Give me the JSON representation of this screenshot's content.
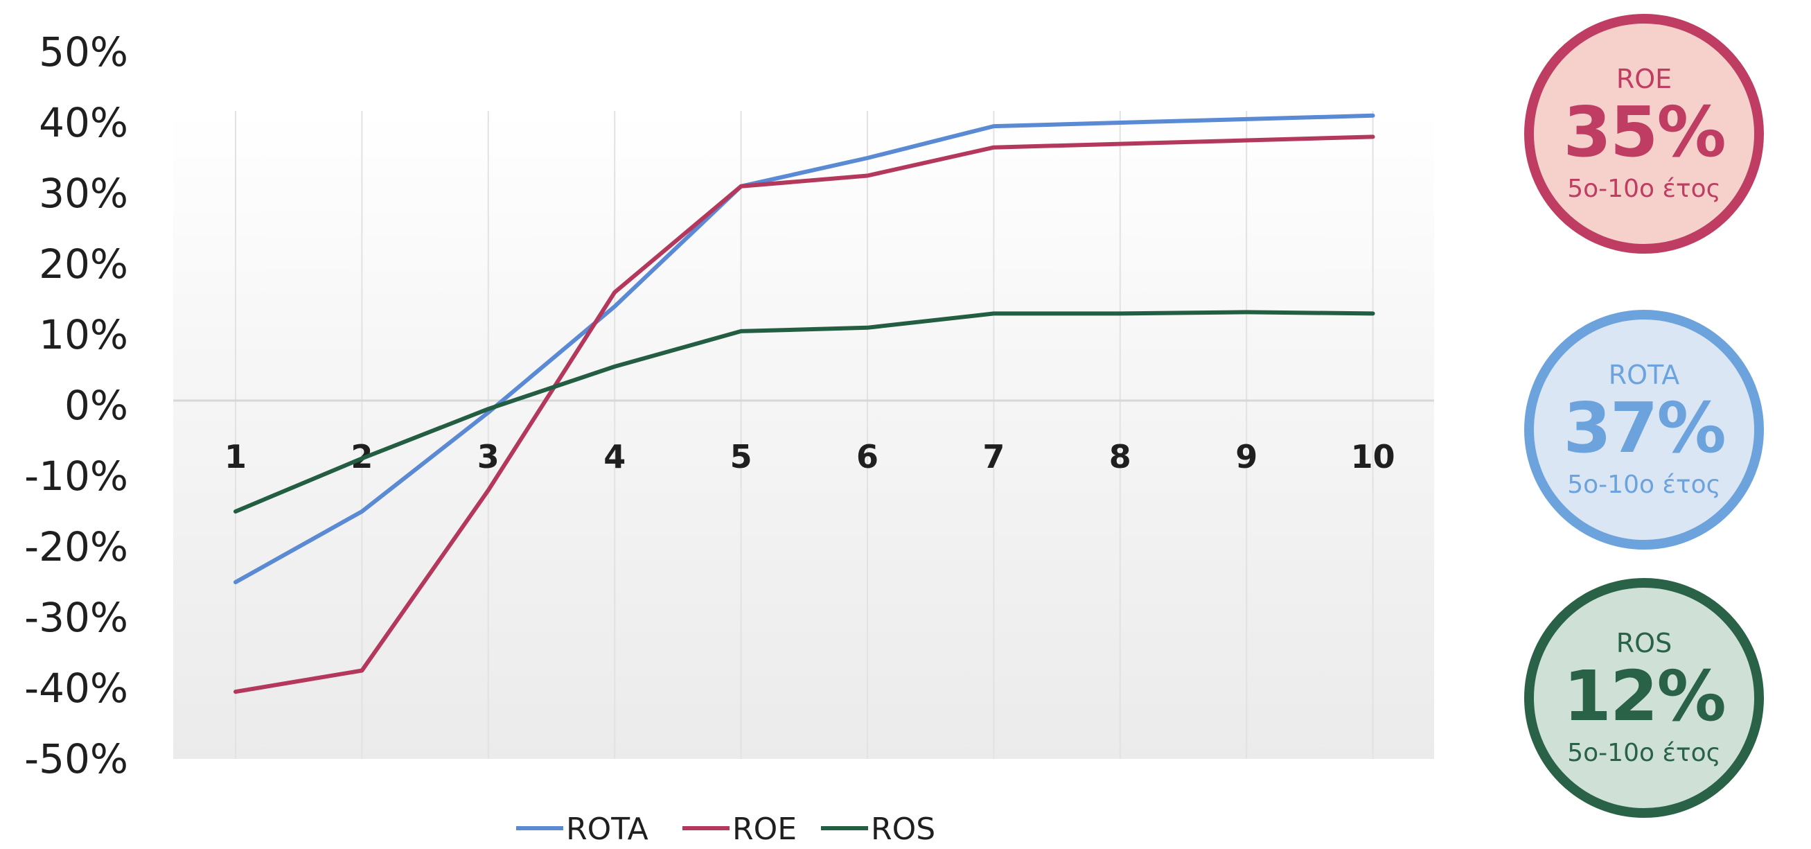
{
  "chart_data": {
    "type": "line",
    "x": [
      "1",
      "2",
      "3",
      "4",
      "5",
      "6",
      "7",
      "8",
      "9",
      "10"
    ],
    "ylim": [
      -50,
      50
    ],
    "yticks": [
      "50%",
      "40%",
      "30%",
      "20%",
      "10%",
      "0%",
      "-10%",
      "-20%",
      "-30%",
      "-40%",
      "-50%"
    ],
    "grid": "vertical",
    "legend_position": "bottom",
    "series": [
      {
        "name": "ROTA",
        "color": "#5a8ad3",
        "values": [
          -25,
          -15,
          -1,
          14,
          31,
          35,
          39.5,
          40,
          40.5,
          41
        ]
      },
      {
        "name": "ROE",
        "color": "#b4385c",
        "values": [
          -40.5,
          -37.5,
          -12,
          16,
          31,
          32.5,
          36.5,
          37,
          37.5,
          38
        ]
      },
      {
        "name": "ROS",
        "color": "#235e42",
        "values": [
          -15,
          -7.5,
          -0.5,
          5.5,
          10.5,
          11,
          13,
          13,
          13.2,
          13
        ]
      }
    ]
  },
  "badges": [
    {
      "label": "ROE",
      "value": "35%",
      "sub": "5ο-10ο έτος",
      "border": "#bf3d63",
      "fill": "#f6d1cc",
      "text": "#bf3d63"
    },
    {
      "label": "ROTA",
      "value": "37%",
      "sub": "5ο-10ο έτος",
      "border": "#6da3dd",
      "fill": "#dbe6f4",
      "text": "#6da3dd"
    },
    {
      "label": "ROS",
      "value": "12%",
      "sub": "5ο-10ο έτος",
      "border": "#2a6248",
      "fill": "#cfe0d6",
      "text": "#2a6248"
    }
  ]
}
